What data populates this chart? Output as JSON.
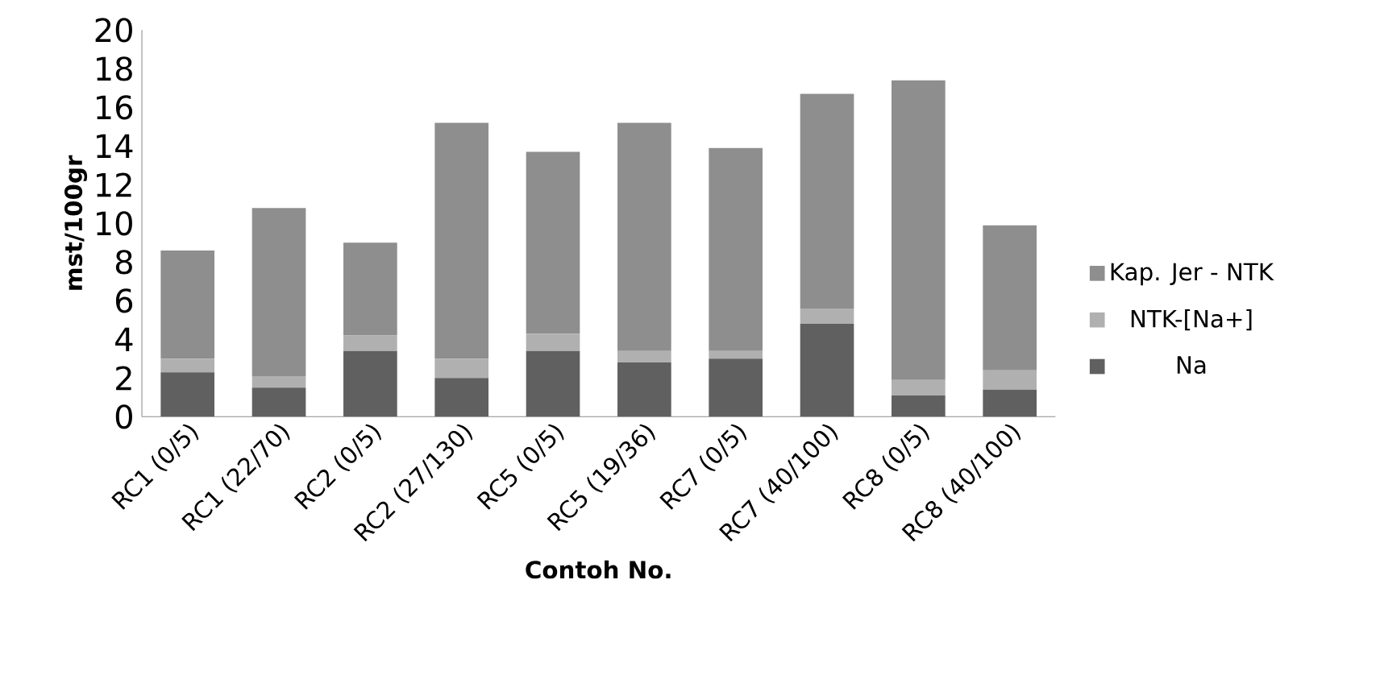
{
  "chart_data": {
    "type": "bar",
    "stacked": true,
    "xlabel": "Contoh No.",
    "ylabel": "mst/100gr",
    "categories": [
      "RC1 (0/5)",
      "RC1 (22/70)",
      "RC2 (0/5)",
      "RC2 (27/130)",
      "RC5 (0/5)",
      "RC5 (19/36)",
      "RC7 (0/5)",
      "RC7 (40/100)",
      "RC8 (0/5)",
      "RC8 (40/100)"
    ],
    "series": [
      {
        "name": "Na",
        "color": "#606060",
        "values": [
          2.3,
          1.5,
          3.4,
          2.0,
          3.4,
          2.8,
          3.0,
          4.8,
          1.1,
          1.4
        ]
      },
      {
        "name": "NTK-[Na+]",
        "color": "#b0b0b0",
        "values": [
          0.7,
          0.6,
          0.8,
          1.0,
          0.9,
          0.6,
          0.4,
          0.8,
          0.8,
          1.0
        ]
      },
      {
        "name": "Kap. Jer - NTK",
        "color": "#8e8e8e",
        "values": [
          5.6,
          8.7,
          4.8,
          12.2,
          9.4,
          11.8,
          10.5,
          11.1,
          15.5,
          7.5
        ]
      }
    ],
    "ylim": [
      0,
      20
    ],
    "yticks": [
      0,
      2,
      4,
      6,
      8,
      10,
      12,
      14,
      16,
      18,
      20
    ],
    "legend": "right"
  }
}
